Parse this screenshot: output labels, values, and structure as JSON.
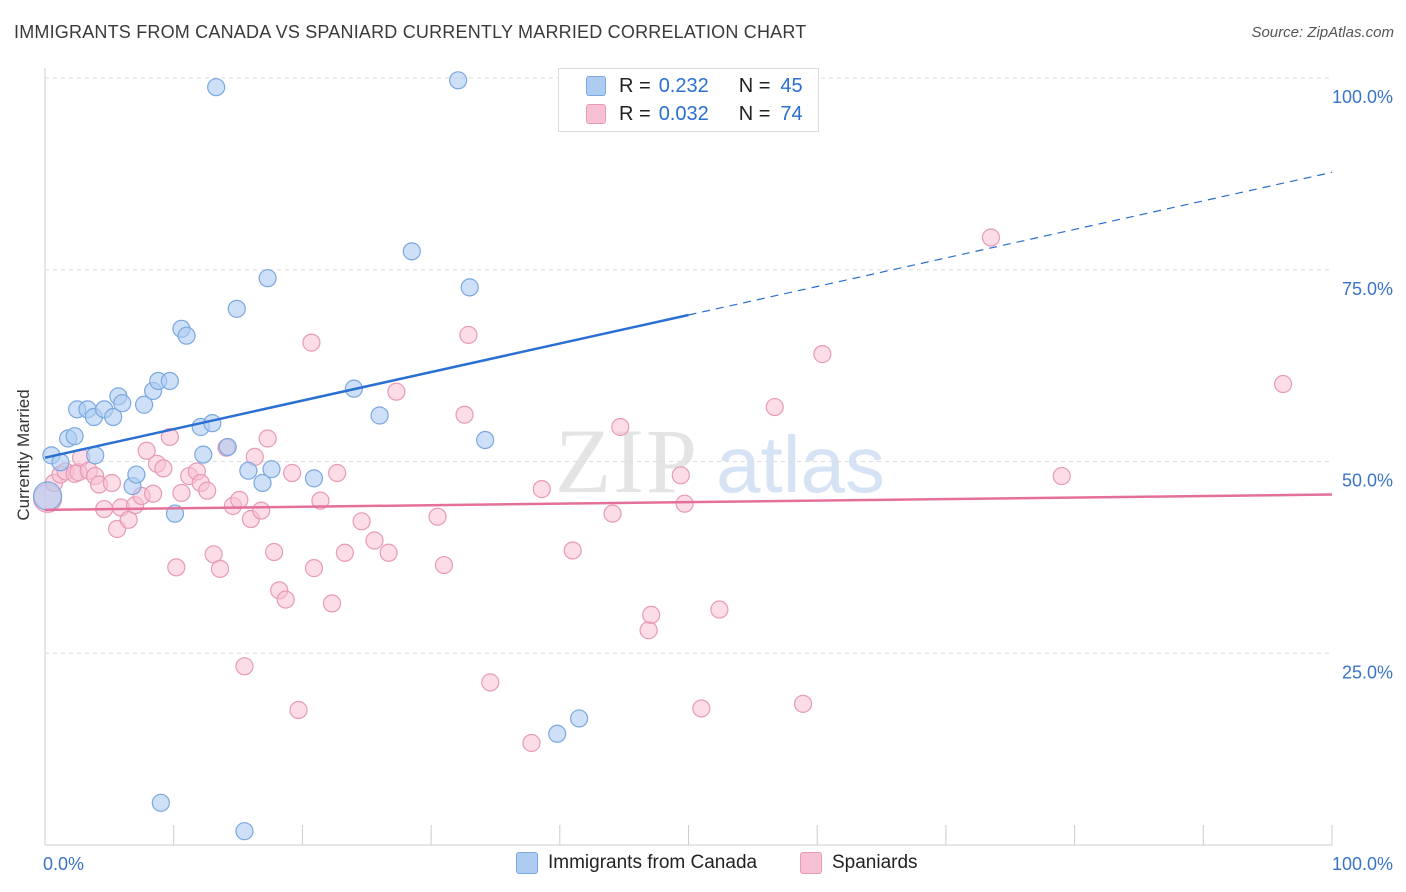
{
  "header": {
    "title": "IMMIGRANTS FROM CANADA VS SPANIARD CURRENTLY MARRIED CORRELATION CHART",
    "source": "Source: ZipAtlas.com"
  },
  "watermark": {
    "part1": "ZIP",
    "part2": "atlas"
  },
  "legend_top": {
    "series1": {
      "r_label": "R =",
      "r_value": "0.232",
      "n_label": "N =",
      "n_value": "45"
    },
    "series2": {
      "r_label": "R =",
      "r_value": "0.032",
      "n_label": "N =",
      "n_value": "74"
    }
  },
  "legend_bottom": {
    "series1": "Immigrants from Canada",
    "series2": "Spaniards"
  },
  "colors": {
    "series1_fill": "#aeccf2",
    "series1_stroke": "#7aa8e0",
    "series1_line": "#2a6fd1",
    "series2_fill": "#f7bfd3",
    "series2_stroke": "#e89ab6",
    "series2_line": "#e46f9a",
    "tick_label": "#3a74c8",
    "grid": "#dddddd"
  },
  "chart_data": {
    "type": "scatter",
    "title": "IMMIGRANTS FROM CANADA VS SPANIARD CURRENTLY MARRIED CORRELATION CHART",
    "xlabel": "",
    "ylabel": "Currently Married",
    "xlim": [
      0,
      100
    ],
    "ylim": [
      0,
      100
    ],
    "x_tick_labels": [
      "0.0%",
      "100.0%"
    ],
    "y_ticks": [
      25,
      50,
      75,
      100
    ],
    "y_tick_labels": [
      "25.0%",
      "50.0%",
      "75.0%",
      "100.0%"
    ],
    "grid": true,
    "series": [
      {
        "name": "Immigrants from Canada",
        "r": 0.232,
        "n": 45,
        "trend": {
          "x0": 0,
          "y0": 50.5,
          "x1": 50,
          "y1": 69.1,
          "dashed_to_x": 100,
          "dashed_to_y": 87.7
        },
        "points": [
          [
            0.2,
            45.5
          ],
          [
            0.5,
            50.8
          ],
          [
            1.2,
            49.9
          ],
          [
            1.8,
            53.0
          ],
          [
            2.3,
            53.3
          ],
          [
            2.5,
            56.8
          ],
          [
            3.3,
            56.8
          ],
          [
            3.8,
            55.8
          ],
          [
            3.9,
            50.8
          ],
          [
            4.6,
            56.8
          ],
          [
            5.3,
            55.8
          ],
          [
            5.7,
            58.5
          ],
          [
            6.0,
            57.6
          ],
          [
            6.8,
            46.8
          ],
          [
            7.1,
            48.3
          ],
          [
            7.7,
            57.4
          ],
          [
            8.4,
            59.2
          ],
          [
            8.8,
            60.5
          ],
          [
            9.7,
            60.5
          ],
          [
            10.1,
            43.2
          ],
          [
            10.6,
            67.3
          ],
          [
            11.0,
            66.4
          ],
          [
            12.1,
            54.5
          ],
          [
            12.3,
            50.9
          ],
          [
            13.0,
            55.0
          ],
          [
            13.3,
            98.8
          ],
          [
            14.2,
            51.9
          ],
          [
            14.9,
            69.9
          ],
          [
            15.5,
            1.8
          ],
          [
            15.8,
            48.8
          ],
          [
            16.9,
            47.2
          ],
          [
            17.3,
            73.9
          ],
          [
            17.6,
            49.0
          ],
          [
            20.9,
            47.8
          ],
          [
            24.0,
            59.5
          ],
          [
            26.0,
            56.0
          ],
          [
            28.5,
            77.4
          ],
          [
            32.1,
            99.7
          ],
          [
            33.0,
            72.7
          ],
          [
            34.2,
            52.8
          ],
          [
            39.8,
            14.5
          ],
          [
            41.5,
            16.5
          ],
          [
            47.2,
            99.5
          ],
          [
            49.0,
            99.5
          ],
          [
            9.0,
            5.5
          ]
        ]
      },
      {
        "name": "Spaniards",
        "r": 0.032,
        "n": 74,
        "trend": {
          "x0": 0,
          "y0": 43.7,
          "x1": 100,
          "y1": 45.7
        },
        "points": [
          [
            0.2,
            45.2
          ],
          [
            0.7,
            47.2
          ],
          [
            1.2,
            48.3
          ],
          [
            1.6,
            48.7
          ],
          [
            2.3,
            48.4
          ],
          [
            2.6,
            48.6
          ],
          [
            2.8,
            50.5
          ],
          [
            3.4,
            48.8
          ],
          [
            3.9,
            48.1
          ],
          [
            4.2,
            47.0
          ],
          [
            4.6,
            43.8
          ],
          [
            5.2,
            47.2
          ],
          [
            5.6,
            41.2
          ],
          [
            5.9,
            44.0
          ],
          [
            6.5,
            42.4
          ],
          [
            7.0,
            44.3
          ],
          [
            7.5,
            45.5
          ],
          [
            7.9,
            51.4
          ],
          [
            8.4,
            45.8
          ],
          [
            8.7,
            49.7
          ],
          [
            9.2,
            49.1
          ],
          [
            9.7,
            53.2
          ],
          [
            10.2,
            36.2
          ],
          [
            10.6,
            45.9
          ],
          [
            11.2,
            48.1
          ],
          [
            11.8,
            48.7
          ],
          [
            12.1,
            47.2
          ],
          [
            12.6,
            46.2
          ],
          [
            13.1,
            37.9
          ],
          [
            13.6,
            36.0
          ],
          [
            14.1,
            51.8
          ],
          [
            14.6,
            44.2
          ],
          [
            15.1,
            45.0
          ],
          [
            15.5,
            23.3
          ],
          [
            16.0,
            42.5
          ],
          [
            16.3,
            50.6
          ],
          [
            16.8,
            43.6
          ],
          [
            17.3,
            53.0
          ],
          [
            17.8,
            38.2
          ],
          [
            18.2,
            33.2
          ],
          [
            18.7,
            32.0
          ],
          [
            19.2,
            48.5
          ],
          [
            19.7,
            17.6
          ],
          [
            20.7,
            65.5
          ],
          [
            20.9,
            36.1
          ],
          [
            21.4,
            44.9
          ],
          [
            22.3,
            31.5
          ],
          [
            22.7,
            48.5
          ],
          [
            23.3,
            38.1
          ],
          [
            24.6,
            42.2
          ],
          [
            25.6,
            39.7
          ],
          [
            26.7,
            38.1
          ],
          [
            27.3,
            59.1
          ],
          [
            30.5,
            42.8
          ],
          [
            31.0,
            36.5
          ],
          [
            32.6,
            56.1
          ],
          [
            32.9,
            66.5
          ],
          [
            34.6,
            21.2
          ],
          [
            37.8,
            13.3
          ],
          [
            38.6,
            46.4
          ],
          [
            41.0,
            38.4
          ],
          [
            44.1,
            43.2
          ],
          [
            44.7,
            54.5
          ],
          [
            46.9,
            28.0
          ],
          [
            47.1,
            30.0
          ],
          [
            49.4,
            48.2
          ],
          [
            49.7,
            44.5
          ],
          [
            51.0,
            17.8
          ],
          [
            52.4,
            30.7
          ],
          [
            56.7,
            57.1
          ],
          [
            58.9,
            18.4
          ],
          [
            60.4,
            64.0
          ],
          [
            73.5,
            79.2
          ],
          [
            79.0,
            48.1
          ],
          [
            96.2,
            60.1
          ]
        ]
      }
    ]
  }
}
